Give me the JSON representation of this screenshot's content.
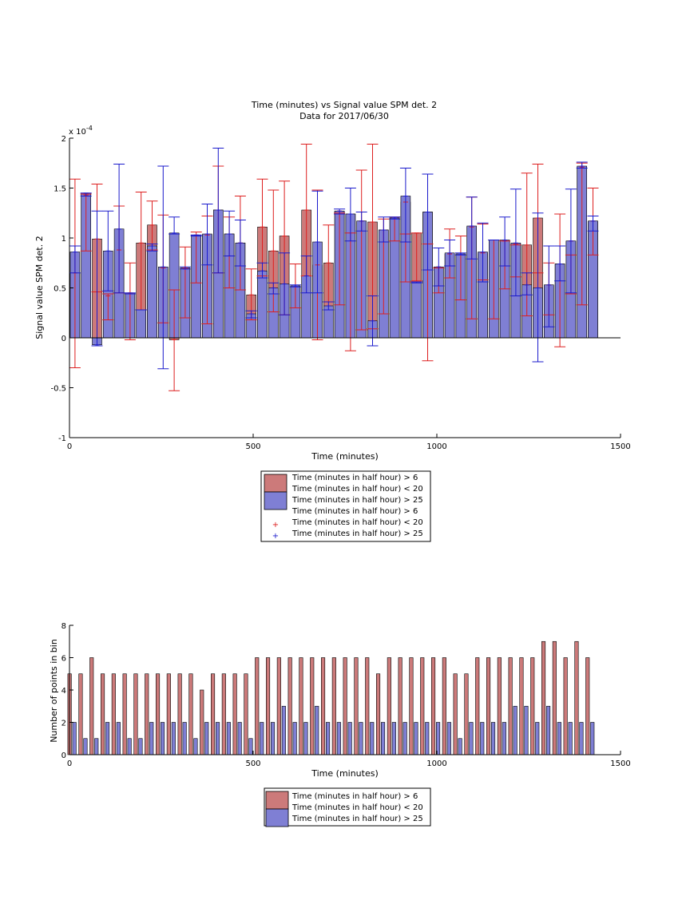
{
  "colors": {
    "series_red_bar": "#cc7a7a",
    "series_blue_bar": "#7f7fd4",
    "series_red_mark": "#dd1f1f",
    "series_blue_mark": "#1a1acc",
    "axis": "#000000"
  },
  "chart_data": [
    {
      "type": "bar",
      "title": "Time (minutes) vs Signal value SPM det. 2",
      "subtitle": "Data for 2017/06/30",
      "xlabel": "Time (minutes)",
      "ylabel": "Signal value SPM det. 2",
      "exponent_label": "x 10",
      "exponent_power": "-4",
      "xlim": [
        0,
        1500
      ],
      "ylim": [
        -1,
        2
      ],
      "xticks": [
        "0",
        "500",
        "1000",
        "1500"
      ],
      "yticks": [
        "-1",
        "-0.5",
        "0",
        "0.5",
        "1",
        "1.5",
        "2"
      ],
      "grid": false,
      "legend_position": "below",
      "legend": [
        "Time (minutes in half hour) > 6",
        "Time (minutes in half hour) < 20",
        "Time (minutes in half hour) > 25",
        "Time (minutes in half hour) > 6",
        "Time (minutes in half hour) < 20",
        "Time (minutes in half hour) > 25"
      ],
      "x": [
        15,
        45,
        75,
        105,
        135,
        165,
        195,
        225,
        255,
        285,
        315,
        345,
        375,
        405,
        435,
        465,
        495,
        525,
        555,
        585,
        615,
        645,
        675,
        705,
        735,
        765,
        795,
        825,
        855,
        885,
        915,
        945,
        975,
        1005,
        1035,
        1065,
        1095,
        1125,
        1155,
        1185,
        1215,
        1245,
        1275,
        1305,
        1335,
        1365,
        1395,
        1425
      ],
      "series": [
        {
          "name": "Time (minutes in half hour) > 6\nTime (minutes in half hour) < 20",
          "values": [
            0.65,
            1.43,
            0.99,
            0.42,
            0.88,
            0.45,
            0.95,
            1.13,
            0.7,
            -0.02,
            0.7,
            1.02,
            1.03,
            1.28,
            1.04,
            0.95,
            0.43,
            1.11,
            0.87,
            1.02,
            0.52,
            1.28,
            0.73,
            0.75,
            1.27,
            1.24,
            1.17,
            1.16,
            1.08,
            1.2,
            1.36,
            1.05,
            1.26,
            0.71,
            0.84,
            0.84,
            1.11,
            0.85,
            0.98,
            0.97,
            0.94,
            0.93,
            1.2,
            0.53,
            0.74,
            0.97,
            1.71,
            1.17
          ],
          "err_low": [
            -0.3,
            0.87,
            0.46,
            0.18,
            0.45,
            -0.02,
            0.28,
            0.88,
            0.15,
            -0.53,
            0.2,
            0.55,
            0.14,
            0.65,
            0.5,
            0.48,
            0.18,
            0.62,
            0.26,
            0.23,
            0.3,
            0.62,
            -0.02,
            0.36,
            0.33,
            -0.13,
            0.08,
            0.09,
            0.24,
            0.97,
            0.56,
            0.57,
            -0.23,
            0.45,
            0.6,
            0.38,
            0.19,
            0.58,
            0.19,
            0.49,
            0.61,
            0.22,
            0.65,
            0.23,
            -0.09,
            0.44,
            0.33,
            0.83
          ],
          "err_high": [
            1.59,
            1.44,
            1.54,
            0.44,
            1.32,
            0.75,
            1.46,
            1.37,
            1.23,
            0.48,
            0.91,
            1.06,
            1.22,
            1.72,
            1.21,
            1.42,
            0.69,
            1.59,
            1.48,
            1.57,
            0.74,
            1.94,
            1.48,
            1.13,
            1.25,
            1.05,
            1.68,
            1.94,
            1.19,
            1.21,
            1.04,
            1.05,
            0.94,
            0.7,
            1.09,
            1.02,
            1.41,
            1.14,
            0.98,
            0.97,
            0.93,
            1.65,
            1.74,
            0.75,
            1.24,
            0.83,
            1.75,
            1.5
          ]
        },
        {
          "name": "Time (minutes in half hour) > 25",
          "values": [
            0.86,
            1.45,
            -0.07,
            0.87,
            1.09,
            0.44,
            0.28,
            0.92,
            0.71,
            1.05,
            0.69,
            1.03,
            1.04,
            1.28,
            1.04,
            0.95,
            0.24,
            0.67,
            0.5,
            0.54,
            0.52,
            0.62,
            0.96,
            0.32,
            1.27,
            1.24,
            1.17,
            0.17,
            1.08,
            1.2,
            1.42,
            0.56,
            1.26,
            0.71,
            0.85,
            0.84,
            1.12,
            0.86,
            0.98,
            0.98,
            0.95,
            0.53,
            0.5,
            0.53,
            0.74,
            0.97,
            1.72,
            1.17
          ],
          "err_low": [
            0.65,
            1.42,
            -0.08,
            0.47,
            0.45,
            0.44,
            0.28,
            0.87,
            -0.31,
            1.04,
            0.69,
            1.02,
            0.73,
            0.65,
            0.82,
            0.72,
            0.2,
            0.6,
            0.44,
            0.23,
            0.51,
            0.45,
            0.45,
            0.28,
            1.24,
            0.97,
            1.07,
            -0.08,
            0.96,
            1.19,
            0.96,
            0.55,
            0.68,
            0.52,
            0.72,
            0.83,
            0.79,
            0.56,
            0.98,
            0.72,
            0.42,
            0.43,
            -0.24,
            0.11,
            0.57,
            0.45,
            1.7,
            1.07
          ],
          "err_high": [
            0.92,
            1.45,
            1.27,
            1.27,
            1.74,
            0.45,
            0.28,
            0.94,
            1.72,
            1.21,
            0.71,
            1.03,
            1.34,
            1.9,
            1.27,
            1.18,
            0.27,
            0.75,
            0.55,
            0.85,
            0.53,
            0.82,
            1.47,
            0.36,
            1.29,
            1.5,
            1.26,
            0.42,
            1.21,
            1.21,
            1.7,
            0.56,
            1.64,
            0.9,
            0.98,
            0.85,
            1.41,
            1.15,
            0.98,
            1.21,
            1.49,
            0.65,
            1.25,
            0.92,
            0.92,
            1.49,
            1.76,
            1.22
          ]
        }
      ]
    },
    {
      "type": "bar",
      "title": "",
      "xlabel": "Time (minutes)",
      "ylabel": "Number of points in bin",
      "xlim": [
        0,
        1500
      ],
      "ylim": [
        0,
        8
      ],
      "xticks": [
        "0",
        "500",
        "1000",
        "1500"
      ],
      "yticks": [
        "0",
        "2",
        "4",
        "6",
        "8"
      ],
      "grid": false,
      "legend_position": "below",
      "legend": [
        "Time (minutes in half hour) > 6",
        "Time (minutes in half hour) < 20",
        "Time (minutes in half hour) > 25"
      ],
      "x": [
        15,
        45,
        75,
        105,
        135,
        165,
        195,
        225,
        255,
        285,
        315,
        345,
        375,
        405,
        435,
        465,
        495,
        525,
        555,
        585,
        615,
        645,
        675,
        705,
        735,
        765,
        795,
        825,
        855,
        885,
        915,
        945,
        975,
        1005,
        1035,
        1065,
        1095,
        1125,
        1155,
        1185,
        1215,
        1245,
        1275,
        1305,
        1335,
        1365,
        1395,
        1425
      ],
      "series": [
        {
          "name": "Time (minutes in half hour) > 6\nTime (minutes in half hour) < 20",
          "values": [
            5,
            5,
            6,
            5,
            5,
            5,
            5,
            5,
            5,
            5,
            5,
            5,
            4,
            5,
            5,
            5,
            5,
            6,
            6,
            6,
            6,
            6,
            6,
            6,
            6,
            6,
            6,
            6,
            5,
            6,
            6,
            6,
            6,
            6,
            6,
            5,
            5,
            6,
            6,
            6,
            6,
            6,
            6,
            7,
            7,
            6,
            7,
            6
          ]
        },
        {
          "name": "Time (minutes in half hour) > 25",
          "values": [
            2,
            1,
            1,
            2,
            2,
            1,
            1,
            2,
            2,
            2,
            2,
            1,
            2,
            2,
            2,
            2,
            1,
            2,
            2,
            3,
            2,
            2,
            3,
            2,
            2,
            2,
            2,
            2,
            2,
            2,
            2,
            2,
            2,
            2,
            2,
            1,
            2,
            2,
            2,
            2,
            3,
            3,
            2,
            3,
            2,
            2,
            2,
            2
          ]
        }
      ]
    }
  ]
}
